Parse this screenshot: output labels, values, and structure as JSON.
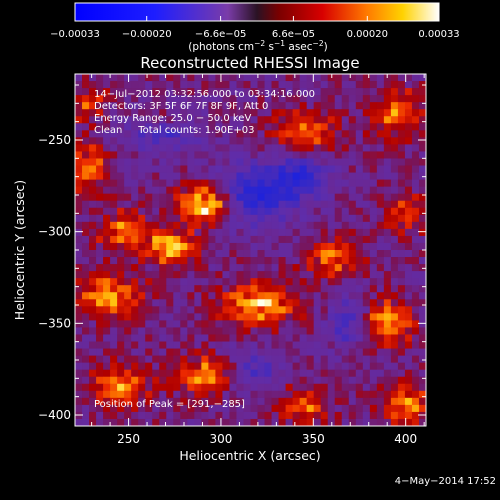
{
  "chart_data": {
    "type": "heatmap",
    "title": "Reconstructed RHESSI Image",
    "xlabel": "Heliocentric X (arcsec)",
    "ylabel": "Heliocentric Y (arcsec)",
    "xlim": [
      221,
      411
    ],
    "ylim": [
      -406,
      -214
    ],
    "x_ticks": [
      250,
      300,
      350,
      400
    ],
    "y_ticks": [
      -250,
      -300,
      -350,
      -400
    ],
    "x_tick_labels": [
      "250",
      "300",
      "350",
      "400"
    ],
    "y_tick_labels": [
      "−250",
      "−300",
      "−350",
      "−400"
    ],
    "colorbar": {
      "range": [
        -0.00033,
        0.00033
      ],
      "tick_labels": [
        "−0.00033",
        "−0.00020",
        "−6.6e−05",
        "6.6e−05",
        "0.00020",
        "0.00033"
      ],
      "tick_values": [
        -0.00033,
        -0.0002,
        -6.6e-05,
        6.6e-05,
        0.0002,
        0.00033
      ],
      "unit_text": "(photons cm",
      "unit_exp1": "−2",
      "unit_mid": " s",
      "unit_exp2": "−1",
      "unit_mid2": " asec",
      "unit_exp3": "−2",
      "unit_close": ")"
    },
    "annotations": [
      "14−Jul−2012 03:32:56.000 to 03:34:16.000",
      "Detectors: 3F 5F 6F 7F 8F 9F, Att 0",
      "Energy Range: 25.0 − 50.0 keV",
      "Clean     Total counts: 1.90E+03"
    ],
    "peak_label": "Position of Peak = [291,−285]",
    "peak": [
      291,
      -285
    ],
    "sources": [
      {
        "x": 291,
        "y": -285,
        "amp": 1.0,
        "sx": 9,
        "sy": 7
      },
      {
        "x": 272,
        "y": -308,
        "amp": 0.7,
        "sx": 10,
        "sy": 7
      },
      {
        "x": 247,
        "y": -300,
        "amp": 0.6,
        "sx": 9,
        "sy": 8
      },
      {
        "x": 240,
        "y": -335,
        "amp": 0.65,
        "sx": 12,
        "sy": 8
      },
      {
        "x": 245,
        "y": -385,
        "amp": 0.6,
        "sx": 11,
        "sy": 8
      },
      {
        "x": 290,
        "y": -378,
        "amp": 0.65,
        "sx": 10,
        "sy": 7
      },
      {
        "x": 320,
        "y": -340,
        "amp": 0.75,
        "sx": 14,
        "sy": 8
      },
      {
        "x": 360,
        "y": -315,
        "amp": 0.5,
        "sx": 10,
        "sy": 8
      },
      {
        "x": 390,
        "y": -350,
        "amp": 0.7,
        "sx": 9,
        "sy": 9
      },
      {
        "x": 400,
        "y": -395,
        "amp": 0.6,
        "sx": 9,
        "sy": 8
      },
      {
        "x": 345,
        "y": -395,
        "amp": 0.5,
        "sx": 10,
        "sy": 7
      },
      {
        "x": 345,
        "y": -245,
        "amp": 0.55,
        "sx": 12,
        "sy": 7
      },
      {
        "x": 395,
        "y": -235,
        "amp": 0.55,
        "sx": 10,
        "sy": 9
      },
      {
        "x": 228,
        "y": -265,
        "amp": 0.55,
        "sx": 7,
        "sy": 9
      },
      {
        "x": 228,
        "y": -230,
        "amp": 0.45,
        "sx": 7,
        "sy": 7
      },
      {
        "x": 400,
        "y": -290,
        "amp": 0.45,
        "sx": 8,
        "sy": 8
      },
      {
        "x": 270,
        "y": -240,
        "amp": 0.35,
        "sx": 10,
        "sy": 6
      }
    ],
    "negative_regions": [
      {
        "x": 270,
        "y": -245,
        "amp": 0.6,
        "sx": 14,
        "sy": 8
      },
      {
        "x": 320,
        "y": -280,
        "amp": 0.7,
        "sx": 16,
        "sy": 12
      },
      {
        "x": 345,
        "y": -270,
        "amp": 0.55,
        "sx": 10,
        "sy": 8
      },
      {
        "x": 370,
        "y": -350,
        "amp": 0.5,
        "sx": 8,
        "sy": 10
      },
      {
        "x": 320,
        "y": -375,
        "amp": 0.4,
        "sx": 10,
        "sy": 8
      }
    ]
  },
  "footer": {
    "date": "4−May−2014 17:52"
  }
}
